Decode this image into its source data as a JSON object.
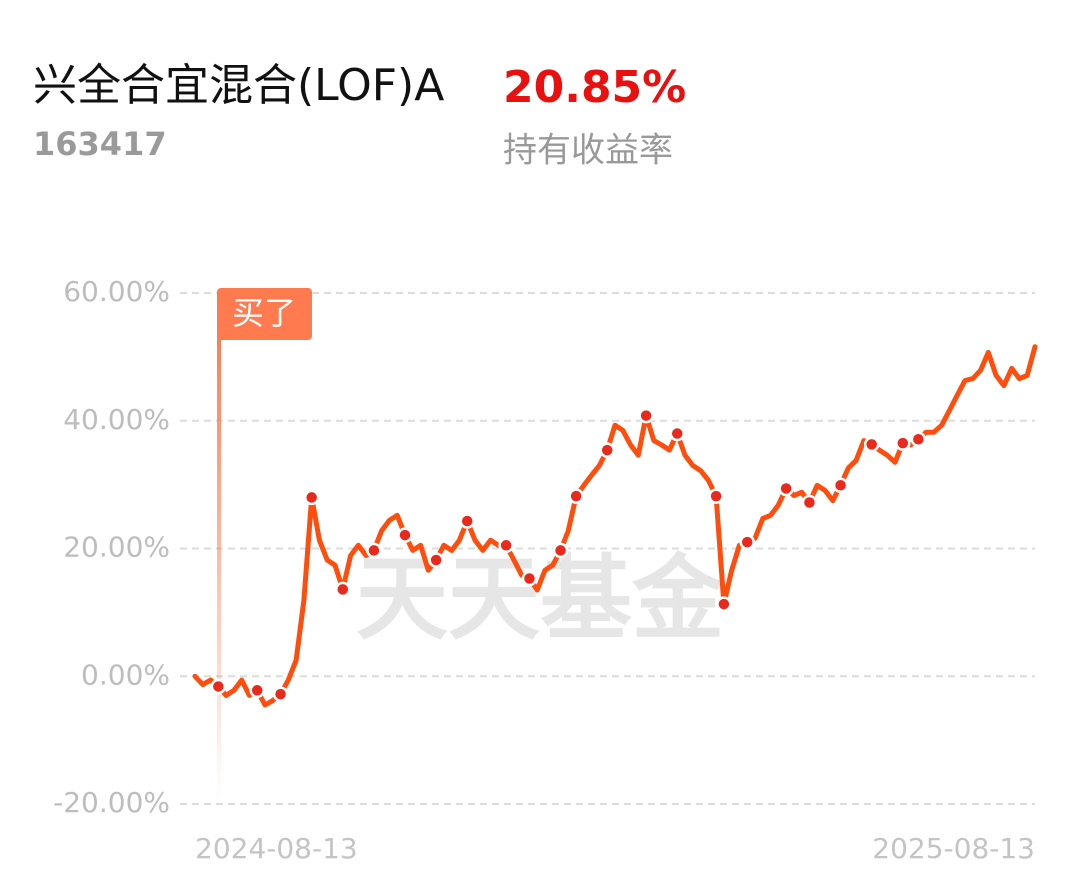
{
  "header": {
    "title": "兴全合宜混合(LOF)A",
    "return_value": "20.85%",
    "code": "163417",
    "return_label": "持有收益率"
  },
  "chart_data": {
    "type": "line",
    "watermark": "天天基金",
    "annotation": "买了",
    "categories": [
      "2024-08-13",
      null,
      null,
      null,
      null,
      null,
      null,
      null,
      null,
      null,
      null,
      null,
      null,
      null,
      null,
      null,
      null,
      null,
      null,
      null,
      null,
      null,
      null,
      null,
      null,
      null,
      null,
      null,
      null,
      null,
      null,
      null,
      null,
      null,
      null,
      null,
      null,
      null,
      null,
      null,
      null,
      null,
      null,
      null,
      null,
      null,
      null,
      null,
      null,
      null,
      null,
      null,
      null,
      null,
      null,
      null,
      null,
      null,
      null,
      null,
      null,
      null,
      null,
      null,
      null,
      null,
      null,
      null,
      null,
      null,
      null,
      null,
      null,
      null,
      null,
      null,
      null,
      null,
      null,
      null,
      null,
      null,
      null,
      null,
      null,
      null,
      null,
      null,
      null,
      null,
      null,
      null,
      null,
      null,
      null,
      null,
      null,
      null,
      null,
      null,
      null,
      null,
      null,
      null,
      null,
      null,
      null,
      null,
      "2025-08-13"
    ],
    "series": [
      {
        "color": "#ff4d0d",
        "values": [
          0,
          -1.3,
          -0.6,
          -1.6,
          -3.0,
          -2.2,
          -0.6,
          -3.0,
          -2.2,
          -4.5,
          -3.8,
          -2.8,
          -0.6,
          2.5,
          11.9,
          28.0,
          21.3,
          18.2,
          17.4,
          13.6,
          18.9,
          20.5,
          18.9,
          19.7,
          22.8,
          24.4,
          25.2,
          22.1,
          19.7,
          20.5,
          16.6,
          18.2,
          20.5,
          19.7,
          21.3,
          24.3,
          21.3,
          19.7,
          21.3,
          20.5,
          20.5,
          18.2,
          15.8,
          15.3,
          13.5,
          16.6,
          17.4,
          19.7,
          22.8,
          28.2,
          29.9,
          31.5,
          33.0,
          35.4,
          39.3,
          38.5,
          36.2,
          34.6,
          40.8,
          36.9,
          36.2,
          35.4,
          38.0,
          34.6,
          33.0,
          32.2,
          30.7,
          28.2,
          11.3,
          16.6,
          20.5,
          21.0,
          21.6,
          24.7,
          25.2,
          26.8,
          29.4,
          28.3,
          28.8,
          27.2,
          29.9,
          29.1,
          27.5,
          29.9,
          32.6,
          33.8,
          36.9,
          36.3,
          35.4,
          34.6,
          33.5,
          36.5,
          36.2,
          37.1,
          38.2,
          38.2,
          39.3,
          41.6,
          44.0,
          46.3,
          46.6,
          47.9,
          50.7,
          47.1,
          45.5,
          48.2,
          46.6,
          47.1,
          51.6
        ]
      },
      {
        "color": "#e8291c",
        "marker": "dot",
        "values": [
          null,
          null,
          null,
          -1.6,
          null,
          null,
          null,
          null,
          -2.2,
          null,
          null,
          -2.8,
          null,
          null,
          null,
          28.0,
          null,
          null,
          null,
          13.6,
          null,
          null,
          null,
          19.7,
          null,
          null,
          null,
          22.1,
          null,
          null,
          null,
          18.2,
          null,
          null,
          null,
          24.3,
          null,
          null,
          null,
          null,
          20.5,
          null,
          null,
          15.3,
          null,
          null,
          null,
          19.7,
          null,
          28.2,
          null,
          null,
          null,
          35.4,
          null,
          null,
          null,
          null,
          40.8,
          null,
          null,
          null,
          38.0,
          null,
          null,
          null,
          null,
          28.2,
          11.3,
          null,
          null,
          21.0,
          null,
          null,
          null,
          null,
          29.4,
          null,
          null,
          27.2,
          null,
          null,
          null,
          29.9,
          null,
          null,
          null,
          36.3,
          null,
          null,
          null,
          36.5,
          null,
          37.1,
          null,
          null,
          null,
          null,
          null,
          null,
          null,
          null,
          null,
          null,
          null,
          null,
          null,
          null,
          null
        ]
      }
    ],
    "ylim": [
      -20,
      60
    ],
    "yticks": [
      {
        "value": -20,
        "label": "-20.00%"
      },
      {
        "value": 0,
        "label": "0.00%"
      },
      {
        "value": 20,
        "label": "20.00%"
      },
      {
        "value": 40,
        "label": "40.00%"
      },
      {
        "value": 60,
        "label": "60.00%"
      }
    ],
    "grid": true
  }
}
